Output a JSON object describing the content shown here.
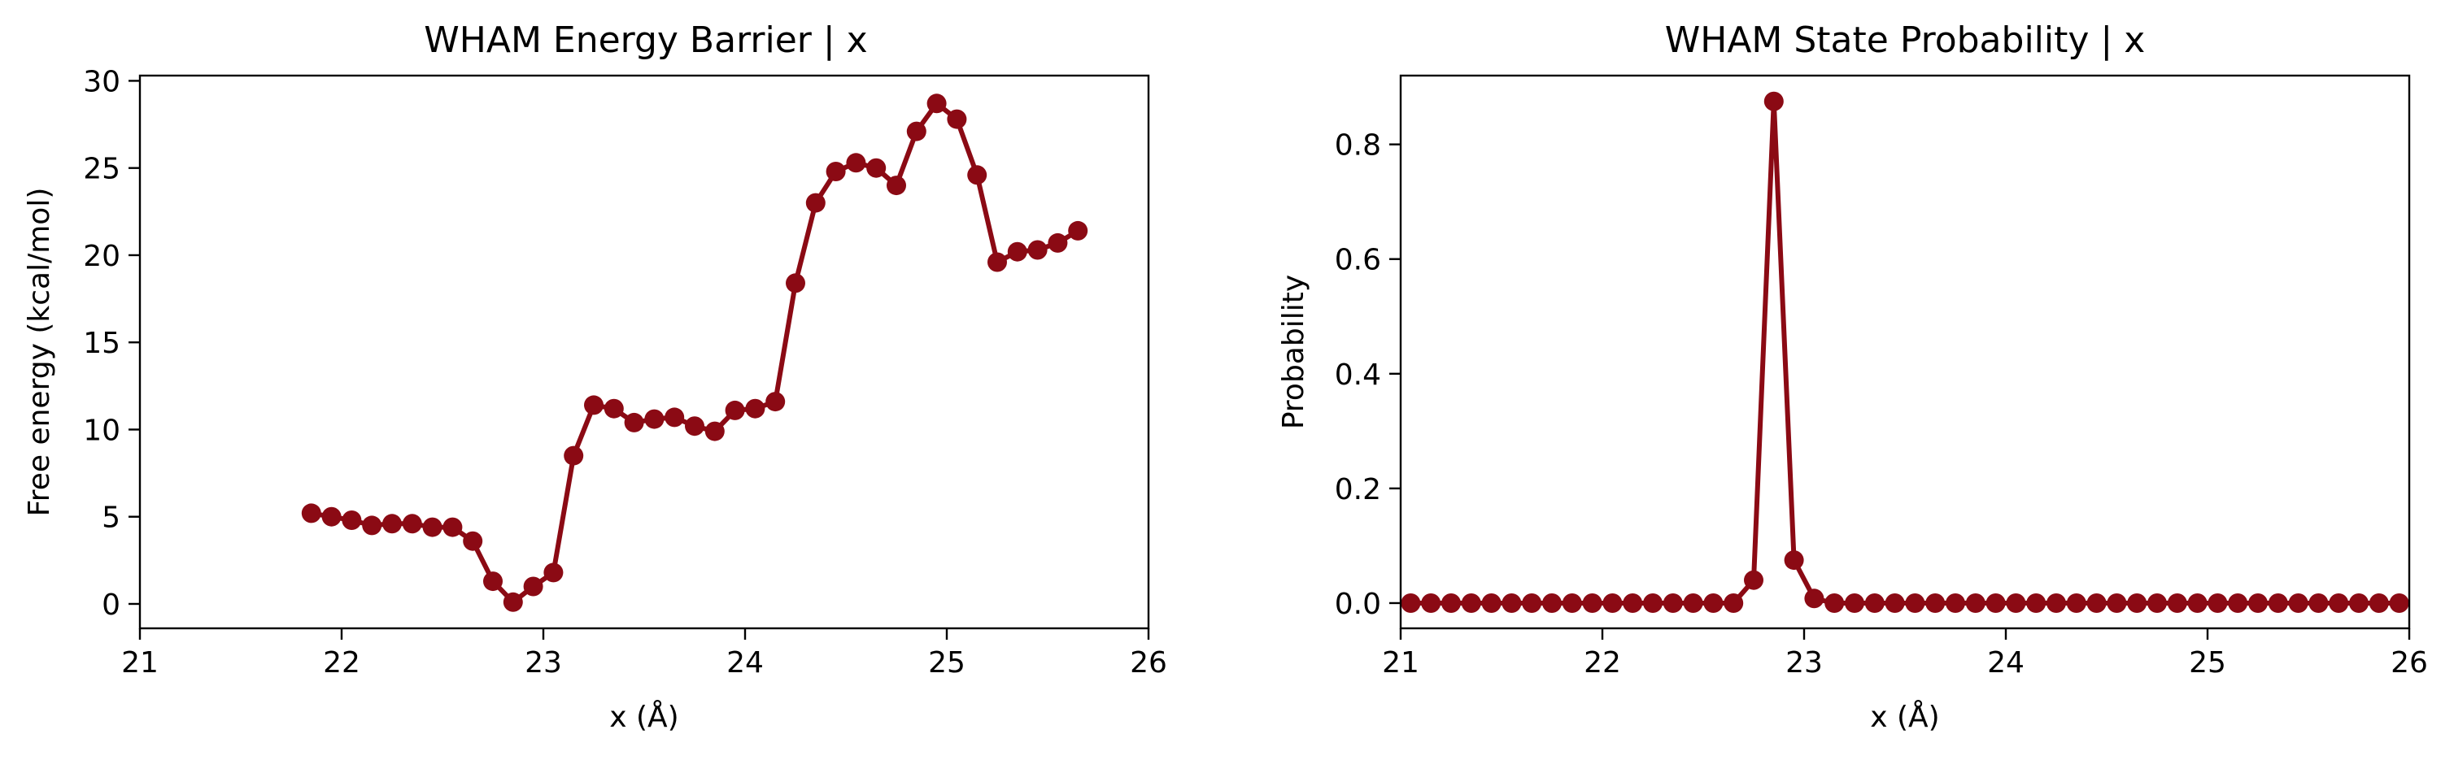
{
  "chart_data": [
    {
      "type": "line",
      "title": "WHAM Energy Barrier | x",
      "xlabel": "x (Å)",
      "ylabel": "Free energy (kcal/mol)",
      "xlim": [
        21,
        26
      ],
      "ylim": [
        -1.4,
        30.3
      ],
      "xticks": [
        21,
        22,
        23,
        24,
        25,
        26
      ],
      "yticks": [
        0,
        5,
        10,
        15,
        20,
        25,
        30
      ],
      "ytick_labels": [
        "0",
        "5",
        "10",
        "15",
        "20",
        "25",
        "30"
      ],
      "grid": false,
      "color": "#8b0a14",
      "x": [
        21.85,
        21.95,
        22.05,
        22.15,
        22.25,
        22.35,
        22.45,
        22.55,
        22.65,
        22.75,
        22.85,
        22.95,
        23.05,
        23.15,
        23.25,
        23.35,
        23.45,
        23.55,
        23.65,
        23.75,
        23.85,
        23.95,
        24.05,
        24.15,
        24.25,
        24.35,
        24.45,
        24.55,
        24.65,
        24.75,
        24.85,
        24.95,
        25.05,
        25.15,
        25.25,
        25.35,
        25.45,
        25.55,
        25.65
      ],
      "y": [
        5.2,
        5.0,
        4.8,
        4.5,
        4.6,
        4.6,
        4.4,
        4.4,
        3.6,
        1.3,
        0.1,
        1.0,
        1.8,
        8.5,
        11.4,
        11.2,
        10.4,
        10.6,
        10.7,
        10.2,
        9.9,
        11.1,
        11.2,
        11.6,
        18.4,
        23.0,
        24.8,
        25.3,
        25.0,
        24.0,
        27.1,
        28.7,
        27.8,
        24.6,
        19.6,
        20.2,
        20.3,
        20.7,
        21.4
      ]
    },
    {
      "type": "line",
      "title": "WHAM State Probability | x",
      "xlabel": "x (Å)",
      "ylabel": "Probability",
      "xlim": [
        21,
        26
      ],
      "ylim": [
        -0.044,
        0.92
      ],
      "xticks": [
        21,
        22,
        23,
        24,
        25,
        26
      ],
      "yticks": [
        0.0,
        0.2,
        0.4,
        0.6,
        0.8
      ],
      "ytick_labels": [
        "0.0",
        "0.2",
        "0.4",
        "0.6",
        "0.8"
      ],
      "grid": false,
      "color": "#8b0a14",
      "x": [
        21.05,
        21.15,
        21.25,
        21.35,
        21.45,
        21.55,
        21.65,
        21.75,
        21.85,
        21.95,
        22.05,
        22.15,
        22.25,
        22.35,
        22.45,
        22.55,
        22.65,
        22.75,
        22.85,
        22.95,
        23.05,
        23.15,
        23.25,
        23.35,
        23.45,
        23.55,
        23.65,
        23.75,
        23.85,
        23.95,
        24.05,
        24.15,
        24.25,
        24.35,
        24.45,
        24.55,
        24.65,
        24.75,
        24.85,
        24.95,
        25.05,
        25.15,
        25.25,
        25.35,
        25.45,
        25.55,
        25.65,
        25.75,
        25.85,
        25.95
      ],
      "y": [
        0.0,
        0.0,
        0.0,
        0.0,
        0.0,
        0.0,
        0.0,
        0.0,
        0.0,
        0.0,
        0.0,
        0.0,
        0.0,
        0.0,
        0.0,
        0.0,
        0.0,
        0.04,
        0.875,
        0.075,
        0.008,
        0.0,
        0.0,
        0.0,
        0.0,
        0.0,
        0.0,
        0.0,
        0.0,
        0.0,
        0.0,
        0.0,
        0.0,
        0.0,
        0.0,
        0.0,
        0.0,
        0.0,
        0.0,
        0.0,
        0.0,
        0.0,
        0.0,
        0.0,
        0.0,
        0.0,
        0.0,
        0.0,
        0.0,
        0.0
      ]
    }
  ]
}
